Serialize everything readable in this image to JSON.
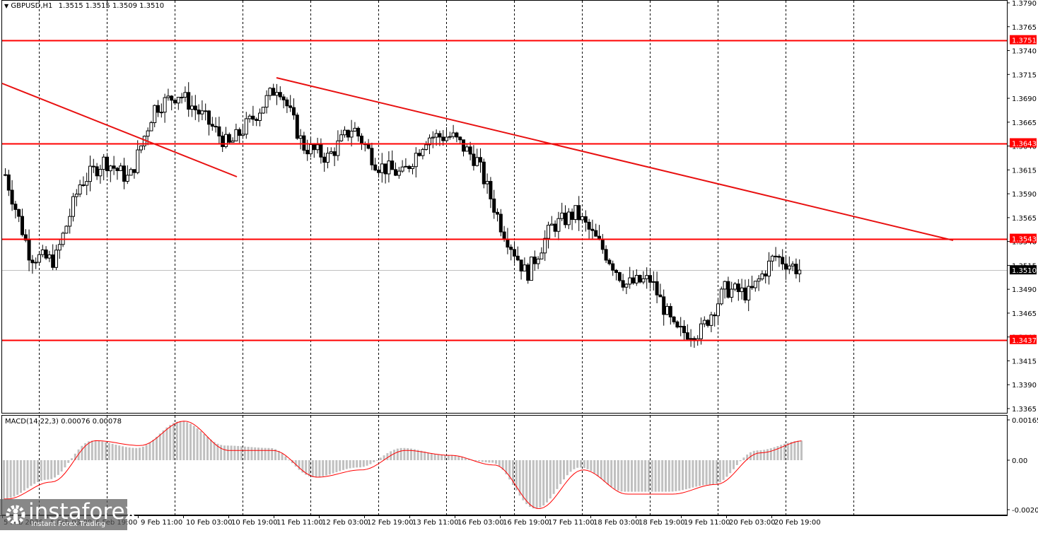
{
  "header": {
    "symbol": "GBPUSD,H1",
    "ohlc": "1.3515 1.3515 1.3509 1.3510",
    "collapse_icon": "triangle-down-icon"
  },
  "macd_header": {
    "label": "MACD(14,22,3) 0.00076 0.00078"
  },
  "watermark": {
    "brand": "instaforex",
    "tagline": "Instant Forex Trading",
    "icon": "gear-person-icon"
  },
  "colors": {
    "background": "#ffffff",
    "grid": "#000000",
    "level_line": "#ff0000",
    "trend_line": "#e81010",
    "bull_body": "#ffffff",
    "bear_body": "#000000",
    "macd_hist": "#c0c0c0",
    "signal_line": "#ff0000",
    "current_price_line": "#c0c0c0",
    "current_price_label_bg": "#000000"
  },
  "chart_data": [
    {
      "type": "candlestick",
      "title": "GBPUSD,H1",
      "symbol": "GBPUSD",
      "timeframe": "H1",
      "last_bar": {
        "open": 1.3515,
        "high": 1.3515,
        "low": 1.3509,
        "close": 1.351
      },
      "current_price": 1.351,
      "ylim": [
        1.3352,
        1.38
      ],
      "y_ticks": [
        "1.3790",
        "1.3765",
        "1.3740",
        "1.3715",
        "1.3690",
        "1.3665",
        "1.3640",
        "1.3615",
        "1.3590",
        "1.3565",
        "1.3540",
        "1.3515",
        "1.3490",
        "1.3465",
        "1.3440",
        "1.3415",
        "1.3390",
        "1.3365"
      ],
      "x_ticks": [
        "5 Feb 2026",
        "6 Feb 03:00",
        "6 Feb 19:00",
        "9 Feb 11:00",
        "10 Feb 03:00",
        "10 Feb 19:00",
        "11 Feb 11:00",
        "12 Feb 03:00",
        "12 Feb 19:00",
        "13 Feb 11:00",
        "16 Feb 03:00",
        "16 Feb 19:00",
        "17 Feb 11:00",
        "18 Feb 03:00",
        "18 Feb 19:00",
        "19 Feb 11:00",
        "20 Feb 03:00",
        "20 Feb 19:00"
      ],
      "horizontal_levels": [
        {
          "price": "1.3751",
          "value": 1.3751
        },
        {
          "price": "1.3643",
          "value": 1.3643
        },
        {
          "price": "1.3543",
          "value": 1.3543
        },
        {
          "price": "1.3437",
          "value": 1.3437
        }
      ],
      "trend_lines": [
        {
          "name": "descending-trendline-1",
          "from": {
            "x_label": "5 Feb 2026",
            "price": 1.3705
          },
          "to": {
            "x_label": "10 Feb 19:00",
            "price": 1.361
          }
        },
        {
          "name": "descending-trendline-2",
          "from": {
            "x_label": "11 Feb 11:00",
            "price": 1.3711
          },
          "to": {
            "x_label": "after 20 Feb 19:00",
            "price": 1.354
          }
        }
      ],
      "price_path": [
        {
          "x": "5 Feb 2026",
          "price": 1.361
        },
        {
          "x": "5 Feb",
          "price": 1.3525
        },
        {
          "x": "6 Feb 03:00",
          "price": 1.352
        },
        {
          "x": "6 Feb 19:00",
          "price": 1.36
        },
        {
          "x": "6 Feb late",
          "price": 1.3625
        },
        {
          "x": "9 Feb 03:00",
          "price": 1.3605
        },
        {
          "x": "9 Feb 11:00",
          "price": 1.368
        },
        {
          "x": "10 Feb 03:00",
          "price": 1.3695
        },
        {
          "x": "10 Feb 11:00",
          "price": 1.367
        },
        {
          "x": "10 Feb 19:00",
          "price": 1.364
        },
        {
          "x": "11 Feb 03:00",
          "price": 1.367
        },
        {
          "x": "11 Feb 11:00",
          "price": 1.3705
        },
        {
          "x": "11 Feb 15:00",
          "price": 1.364
        },
        {
          "x": "12 Feb 03:00",
          "price": 1.3628
        },
        {
          "x": "12 Feb 11:00",
          "price": 1.366
        },
        {
          "x": "12 Feb 19:00",
          "price": 1.362
        },
        {
          "x": "13 Feb 03:00",
          "price": 1.361
        },
        {
          "x": "13 Feb 11:00",
          "price": 1.365
        },
        {
          "x": "16 Feb 03:00",
          "price": 1.365
        },
        {
          "x": "16 Feb 19:00",
          "price": 1.3625
        },
        {
          "x": "17 Feb 03:00",
          "price": 1.3555
        },
        {
          "x": "17 Feb 07:00",
          "price": 1.3505
        },
        {
          "x": "17 Feb 11:00",
          "price": 1.3555
        },
        {
          "x": "18 Feb 03:00",
          "price": 1.357
        },
        {
          "x": "18 Feb 11:00",
          "price": 1.3535
        },
        {
          "x": "18 Feb 19:00",
          "price": 1.3495
        },
        {
          "x": "19 Feb 03:00",
          "price": 1.35
        },
        {
          "x": "19 Feb 11:00",
          "price": 1.3445
        },
        {
          "x": "20 Feb 03:00",
          "price": 1.3445
        },
        {
          "x": "20 Feb 11:00",
          "price": 1.349
        },
        {
          "x": "20 Feb 19:00",
          "price": 1.3485
        },
        {
          "x": "20 Feb 21:00",
          "price": 1.3525
        },
        {
          "x": "21 Feb 00:00",
          "price": 1.351
        }
      ]
    },
    {
      "type": "bar",
      "title": "MACD(14,22,3) 0.00076 0.00078",
      "indicator": "MACD",
      "params": [
        14,
        22,
        3
      ],
      "macd_value": 0.00076,
      "signal_value": 0.00078,
      "ylim": [
        -0.00204,
        0.00165
      ],
      "y_ticks": [
        "0.00165",
        "0.00",
        "-0.00204"
      ],
      "series": [
        {
          "name": "MACD histogram",
          "x": [
            "5 Feb 2026",
            "6 Feb 03:00",
            "6 Feb 19:00",
            "9 Feb 11:00",
            "10 Feb 03:00",
            "10 Feb 19:00",
            "11 Feb 11:00",
            "12 Feb 03:00",
            "12 Feb 19:00",
            "13 Feb 11:00",
            "16 Feb 03:00",
            "16 Feb 19:00",
            "17 Feb 11:00",
            "18 Feb 03:00",
            "18 Feb 19:00",
            "19 Feb 11:00",
            "20 Feb 03:00",
            "20 Feb 19:00",
            "end"
          ],
          "values": [
            -0.0016,
            -0.0008,
            0.0008,
            0.0005,
            0.0016,
            0.0006,
            0.0005,
            -0.0007,
            -0.0003,
            0.0005,
            0.0002,
            -0.0001,
            -0.002,
            -0.0003,
            -0.0013,
            -0.0013,
            -0.001,
            0.0004,
            0.0008
          ]
        },
        {
          "name": "Signal",
          "values": [
            -0.0016,
            -0.0009,
            0.0008,
            0.0006,
            0.0016,
            0.0004,
            0.0004,
            -0.0007,
            -0.0004,
            0.0004,
            0.0002,
            -0.0002,
            -0.002,
            -0.0004,
            -0.0014,
            -0.0014,
            -0.001,
            0.0003,
            0.0008
          ]
        }
      ]
    }
  ]
}
